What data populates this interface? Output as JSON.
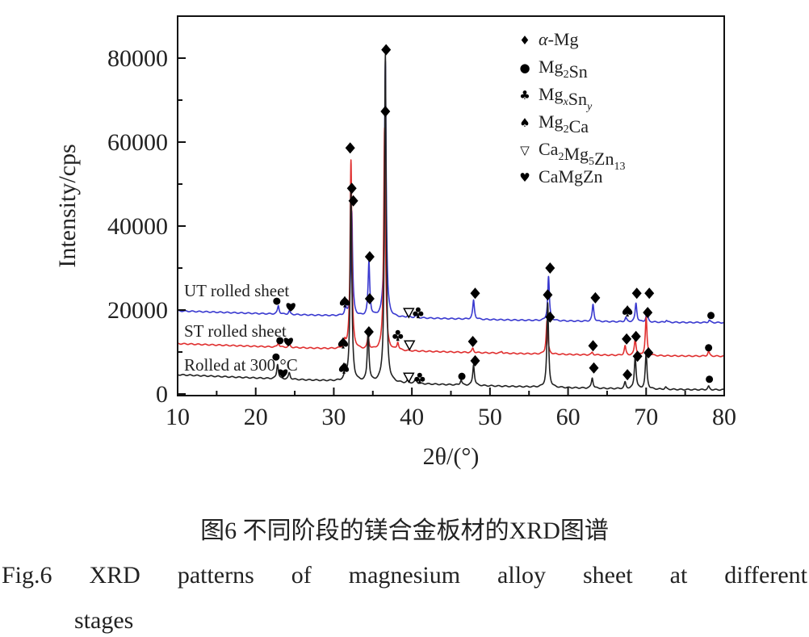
{
  "chart_data": {
    "type": "line",
    "title": "",
    "xlabel": "2θ/(°)",
    "ylabel": "Intensity/cps",
    "xlim": [
      10,
      80
    ],
    "ylim": [
      0,
      90000
    ],
    "xticks": [
      10,
      20,
      30,
      40,
      50,
      60,
      70,
      80
    ],
    "yticks": [
      0,
      20000,
      40000,
      60000,
      80000
    ],
    "grid": false,
    "legend_position": "top-right",
    "legend": [
      {
        "symbol": "♦",
        "parts": [
          {
            "i": "α"
          },
          {
            "t": "-Mg"
          }
        ]
      },
      {
        "symbol": "●",
        "parts": [
          {
            "t": "Mg"
          },
          {
            "sub": "2"
          },
          {
            "t": "Sn"
          }
        ]
      },
      {
        "symbol": "♣",
        "parts": [
          {
            "t": "Mg"
          },
          {
            "subi": "x"
          },
          {
            "t": "Sn"
          },
          {
            "subi": "y"
          }
        ]
      },
      {
        "symbol": "♠",
        "parts": [
          {
            "t": "Mg"
          },
          {
            "sub": "2"
          },
          {
            "t": "Ca"
          }
        ]
      },
      {
        "symbol": "▽",
        "parts": [
          {
            "t": "Ca"
          },
          {
            "sub": "2"
          },
          {
            "t": "Mg"
          },
          {
            "sub": "5"
          },
          {
            "t": "Zn"
          },
          {
            "sub": "13"
          }
        ]
      },
      {
        "symbol": "♥",
        "parts": [
          {
            "t": "CaMgZn"
          }
        ]
      }
    ],
    "series": [
      {
        "name": "UT rolled sheet",
        "color": "#3a3ad0",
        "baseline": [
          19800,
          17000
        ],
        "peaks": [
          [
            22.9,
            2000
          ],
          [
            24.3,
            800
          ],
          [
            31.5,
            1800
          ],
          [
            32.3,
            25000
          ],
          [
            34.5,
            13000
          ],
          [
            36.6,
            61000
          ],
          [
            39.5,
            500
          ],
          [
            40.5,
            600
          ],
          [
            47.9,
            4500
          ],
          [
            57.5,
            10500
          ],
          [
            63.2,
            4000
          ],
          [
            67.4,
            1000
          ],
          [
            68.7,
            4500
          ],
          [
            70.1,
            2500
          ],
          [
            72.6,
            500
          ],
          [
            78.1,
            600
          ]
        ]
      },
      {
        "name": "ST rolled sheet",
        "color": "#e03030",
        "baseline": [
          12000,
          9000
        ],
        "peaks": [
          [
            22.9,
            1000
          ],
          [
            24.3,
            800
          ],
          [
            31.4,
            1500
          ],
          [
            32.2,
            45000
          ],
          [
            34.4,
            3000
          ],
          [
            36.5,
            53000
          ],
          [
            38.2,
            1800
          ],
          [
            47.8,
            1000
          ],
          [
            51.5,
            400
          ],
          [
            57.3,
            8000
          ],
          [
            63.1,
            600
          ],
          [
            67.3,
            2200
          ],
          [
            68.6,
            4000
          ],
          [
            70.0,
            9000
          ],
          [
            78.0,
            1200
          ]
        ]
      },
      {
        "name": "Rolled at 300 °C",
        "color": "#222222",
        "baseline": [
          4600,
          1000
        ],
        "peaks": [
          [
            22.8,
            3500
          ],
          [
            24.3,
            1500
          ],
          [
            31.5,
            2500
          ],
          [
            32.2,
            45000
          ],
          [
            34.4,
            12000
          ],
          [
            36.6,
            78000
          ],
          [
            39.5,
            800
          ],
          [
            40.5,
            1200
          ],
          [
            46.3,
            1200
          ],
          [
            47.9,
            5000
          ],
          [
            57.4,
            20000
          ],
          [
            63.1,
            2500
          ],
          [
            67.3,
            1500
          ],
          [
            68.6,
            8000
          ],
          [
            70.0,
            8500
          ],
          [
            72.5,
            500
          ],
          [
            78.0,
            800
          ]
        ]
      }
    ],
    "markers": [
      {
        "s": "♦",
        "x": 32.1,
        "y": 58600
      },
      {
        "s": "♦",
        "x": 32.3,
        "y": 49000
      },
      {
        "s": "♦",
        "x": 32.5,
        "y": 46000
      },
      {
        "s": "♦",
        "x": 34.6,
        "y": 32700
      },
      {
        "s": "♦",
        "x": 34.6,
        "y": 22700
      },
      {
        "s": "♦",
        "x": 34.5,
        "y": 14800
      },
      {
        "s": "♦",
        "x": 36.7,
        "y": 82000
      },
      {
        "s": "♦",
        "x": 36.6,
        "y": 67300
      },
      {
        "s": "♠",
        "x": 31.4,
        "y": 22000
      },
      {
        "s": "♠",
        "x": 31.2,
        "y": 12200
      },
      {
        "s": "♠",
        "x": 31.3,
        "y": 6200
      },
      {
        "s": "●",
        "x": 22.7,
        "y": 22100
      },
      {
        "s": "♥",
        "x": 24.5,
        "y": 20800
      },
      {
        "s": "●",
        "x": 23.1,
        "y": 12700
      },
      {
        "s": "♥",
        "x": 24.2,
        "y": 12500
      },
      {
        "s": "●",
        "x": 22.6,
        "y": 8800
      },
      {
        "s": "♥",
        "x": 23.5,
        "y": 5000
      },
      {
        "s": "▽",
        "x": 39.6,
        "y": 19400
      },
      {
        "s": "♣",
        "x": 40.8,
        "y": 19400
      },
      {
        "s": "♣",
        "x": 38.2,
        "y": 14000
      },
      {
        "s": "▽",
        "x": 39.7,
        "y": 11700
      },
      {
        "s": "▽",
        "x": 39.6,
        "y": 4000
      },
      {
        "s": "♣",
        "x": 41.0,
        "y": 3800
      },
      {
        "s": "♦",
        "x": 48.1,
        "y": 24000
      },
      {
        "s": "♦",
        "x": 57.7,
        "y": 30000
      },
      {
        "s": "♦",
        "x": 57.4,
        "y": 23600
      },
      {
        "s": "♦",
        "x": 57.7,
        "y": 18300
      },
      {
        "s": "♦",
        "x": 63.5,
        "y": 22900
      },
      {
        "s": "♠",
        "x": 67.6,
        "y": 19800
      },
      {
        "s": "♦",
        "x": 68.8,
        "y": 24000
      },
      {
        "s": "♦",
        "x": 70.4,
        "y": 24000
      },
      {
        "s": "♦",
        "x": 70.2,
        "y": 19400
      },
      {
        "s": "●",
        "x": 78.3,
        "y": 18700
      },
      {
        "s": "♦",
        "x": 47.8,
        "y": 12500
      },
      {
        "s": "♦",
        "x": 63.2,
        "y": 11500
      },
      {
        "s": "♦",
        "x": 67.5,
        "y": 13100
      },
      {
        "s": "♦",
        "x": 68.7,
        "y": 13700
      },
      {
        "s": "●",
        "x": 78.0,
        "y": 11000
      },
      {
        "s": "●",
        "x": 46.4,
        "y": 4200
      },
      {
        "s": "♦",
        "x": 48.1,
        "y": 7900
      },
      {
        "s": "♦",
        "x": 63.3,
        "y": 6200
      },
      {
        "s": "♦",
        "x": 67.6,
        "y": 4600
      },
      {
        "s": "♦",
        "x": 68.9,
        "y": 9000
      },
      {
        "s": "♦",
        "x": 70.3,
        "y": 9800
      },
      {
        "s": "●",
        "x": 78.1,
        "y": 3500
      }
    ]
  },
  "caption": {
    "chinese": "图6  不同阶段的镁合金板材的XRD图谱",
    "english_line1": "Fig.6 XRD patterns of magnesium alloy sheet at different",
    "english_line2": "stages"
  }
}
